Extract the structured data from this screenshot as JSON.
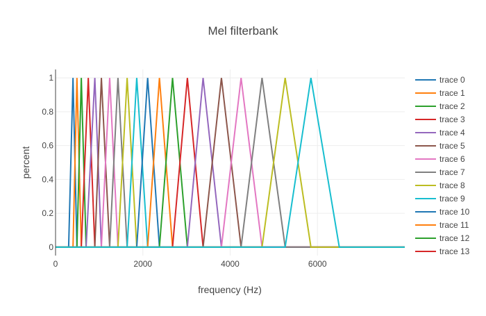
{
  "chart_data": {
    "type": "line",
    "title": "Mel filterbank",
    "xlabel": "frequency (Hz)",
    "ylabel": "percent",
    "xlim": [
      0,
      8000
    ],
    "ylim": [
      -0.05,
      1.05
    ],
    "x_ticks": [
      {
        "value": 0,
        "label": "0"
      },
      {
        "value": 2000,
        "label": "2000"
      },
      {
        "value": 4000,
        "label": "4000"
      },
      {
        "value": 6000,
        "label": "6000"
      }
    ],
    "y_ticks": [
      {
        "value": 0,
        "label": "0"
      },
      {
        "value": 0.2,
        "label": "0.2"
      },
      {
        "value": 0.4,
        "label": "0.4"
      },
      {
        "value": 0.6,
        "label": "0.6"
      },
      {
        "value": 0.8,
        "label": "0.8"
      },
      {
        "value": 1,
        "label": "1"
      }
    ],
    "grid": true,
    "legend_position": "right",
    "series": [
      {
        "name": "trace 0",
        "color": "#1f77b4",
        "peaks": [
          [
            300,
            0
          ],
          [
            400,
            1
          ],
          [
            490,
            0
          ]
        ]
      },
      {
        "name": "trace 1",
        "color": "#ff7f0e",
        "peaks": [
          [
            400,
            0
          ],
          [
            490,
            1
          ],
          [
            590,
            0
          ]
        ]
      },
      {
        "name": "trace 2",
        "color": "#2ca02c",
        "peaks": [
          [
            490,
            0
          ],
          [
            590,
            1
          ],
          [
            700,
            0
          ]
        ]
      },
      {
        "name": "trace 3",
        "color": "#d62728",
        "peaks": [
          [
            590,
            0
          ],
          [
            750,
            1
          ],
          [
            900,
            0
          ]
        ]
      },
      {
        "name": "trace 4",
        "color": "#9467bd",
        "peaks": [
          [
            700,
            0
          ],
          [
            900,
            1
          ],
          [
            1050,
            0
          ]
        ]
      },
      {
        "name": "trace 5",
        "color": "#8c564b",
        "peaks": [
          [
            900,
            0
          ],
          [
            1050,
            1
          ],
          [
            1240,
            0
          ]
        ]
      },
      {
        "name": "trace 6",
        "color": "#e377c2",
        "peaks": [
          [
            1050,
            0
          ],
          [
            1240,
            1
          ],
          [
            1430,
            0
          ]
        ]
      },
      {
        "name": "trace 7",
        "color": "#7f7f7f",
        "peaks": [
          [
            1240,
            0
          ],
          [
            1430,
            1
          ],
          [
            1640,
            0
          ]
        ]
      },
      {
        "name": "trace 8",
        "color": "#bcbd22",
        "peaks": [
          [
            1430,
            0
          ],
          [
            1640,
            1
          ],
          [
            1860,
            0
          ]
        ]
      },
      {
        "name": "trace 9",
        "color": "#17becf",
        "peaks": [
          [
            1640,
            0
          ],
          [
            1860,
            1
          ],
          [
            2110,
            0
          ]
        ]
      },
      {
        "name": "trace 10",
        "color": "#1f77b4",
        "peaks": [
          [
            1860,
            0
          ],
          [
            2110,
            1
          ],
          [
            2380,
            0
          ]
        ]
      },
      {
        "name": "trace 11",
        "color": "#ff7f0e",
        "peaks": [
          [
            2110,
            0
          ],
          [
            2380,
            1
          ],
          [
            2680,
            0
          ]
        ]
      },
      {
        "name": "trace 12",
        "color": "#2ca02c",
        "peaks": [
          [
            2380,
            0
          ],
          [
            2680,
            1
          ],
          [
            3020,
            0
          ]
        ]
      },
      {
        "name": "trace 13",
        "color": "#d62728",
        "peaks": [
          [
            2680,
            0
          ],
          [
            3020,
            1
          ],
          [
            3380,
            0
          ]
        ]
      },
      {
        "name": "",
        "color": "#9467bd",
        "peaks": [
          [
            3020,
            0
          ],
          [
            3380,
            1
          ],
          [
            3800,
            0
          ]
        ]
      },
      {
        "name": "",
        "color": "#8c564b",
        "peaks": [
          [
            3380,
            0
          ],
          [
            3800,
            1
          ],
          [
            4250,
            0
          ]
        ]
      },
      {
        "name": "",
        "color": "#e377c2",
        "peaks": [
          [
            3800,
            0
          ],
          [
            4250,
            1
          ],
          [
            4730,
            0
          ]
        ]
      },
      {
        "name": "",
        "color": "#7f7f7f",
        "peaks": [
          [
            4250,
            0
          ],
          [
            4730,
            1
          ],
          [
            5260,
            0
          ]
        ]
      },
      {
        "name": "",
        "color": "#bcbd22",
        "peaks": [
          [
            4730,
            0
          ],
          [
            5260,
            1
          ],
          [
            5850,
            0
          ]
        ]
      },
      {
        "name": "",
        "color": "#17becf",
        "peaks": [
          [
            5260,
            0
          ],
          [
            5850,
            1
          ],
          [
            6500,
            0
          ]
        ]
      }
    ]
  }
}
